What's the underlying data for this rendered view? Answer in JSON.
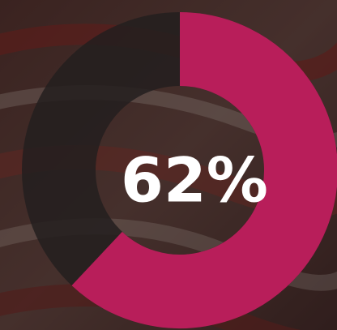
{
  "chart_data": {
    "type": "donut",
    "values": [
      62
    ],
    "value_labels": [
      "62%"
    ],
    "color": "#b81e5a",
    "track_color": "#231f1f",
    "range": [
      0,
      100
    ]
  }
}
